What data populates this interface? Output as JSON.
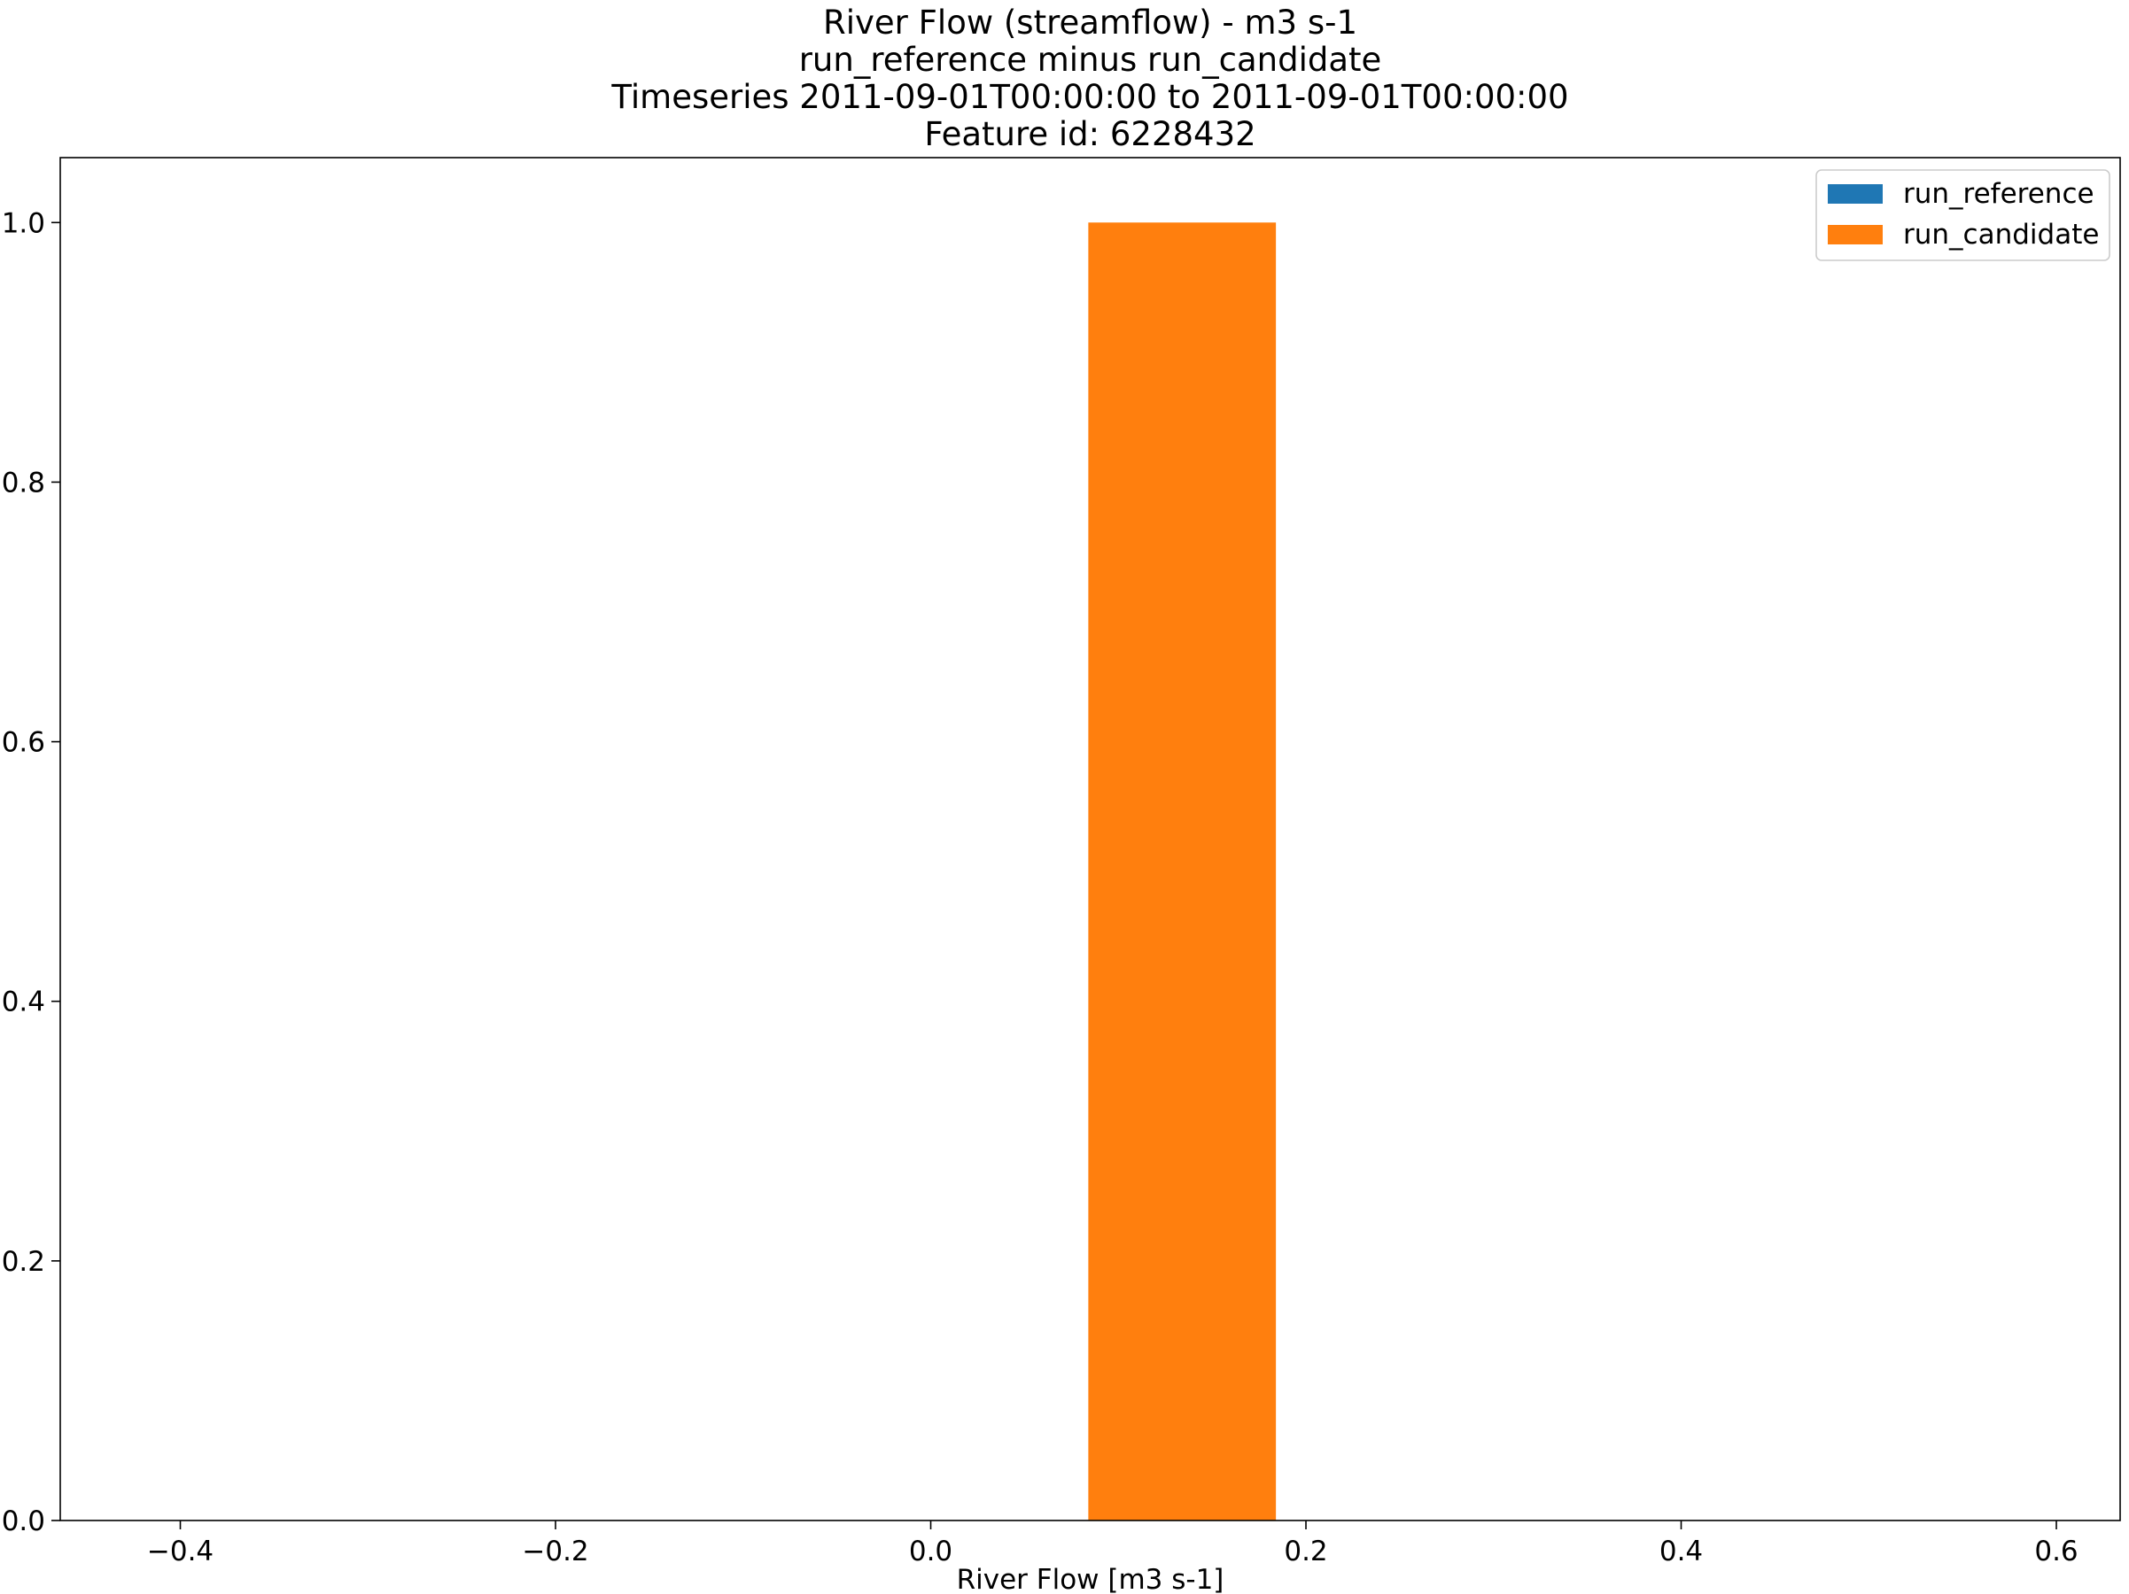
{
  "chart_data": {
    "type": "bar",
    "title_lines": [
      "River Flow (streamflow) - m3 s-1",
      "run_reference minus run_candidate",
      "Timeseries 2011-09-01T00:00:00 to 2011-09-01T00:00:00",
      "Feature id: 6228432"
    ],
    "xlabel": "River Flow [m3 s-1]",
    "ylabel": "",
    "xlim": [
      -0.464,
      0.634
    ],
    "ylim": [
      0,
      1.05
    ],
    "x_ticks": [
      {
        "value": -0.4,
        "label": "−0.4"
      },
      {
        "value": -0.2,
        "label": "−0.2"
      },
      {
        "value": 0.0,
        "label": "0.0"
      },
      {
        "value": 0.2,
        "label": "0.2"
      },
      {
        "value": 0.4,
        "label": "0.4"
      },
      {
        "value": 0.6,
        "label": "0.6"
      }
    ],
    "y_ticks": [
      {
        "value": 0.0,
        "label": "0.0"
      },
      {
        "value": 0.2,
        "label": "0.2"
      },
      {
        "value": 0.4,
        "label": "0.4"
      },
      {
        "value": 0.6,
        "label": "0.6"
      },
      {
        "value": 0.8,
        "label": "0.8"
      },
      {
        "value": 1.0,
        "label": "1.0"
      }
    ],
    "grid": false,
    "legend_position": "top-right",
    "series": [
      {
        "name": "run_reference",
        "color": "#1f77b4",
        "bins": []
      },
      {
        "name": "run_candidate",
        "color": "#ff7f0e",
        "bins": [
          {
            "x0": 0.084,
            "x1": 0.184,
            "value": 1.0
          }
        ]
      }
    ]
  }
}
